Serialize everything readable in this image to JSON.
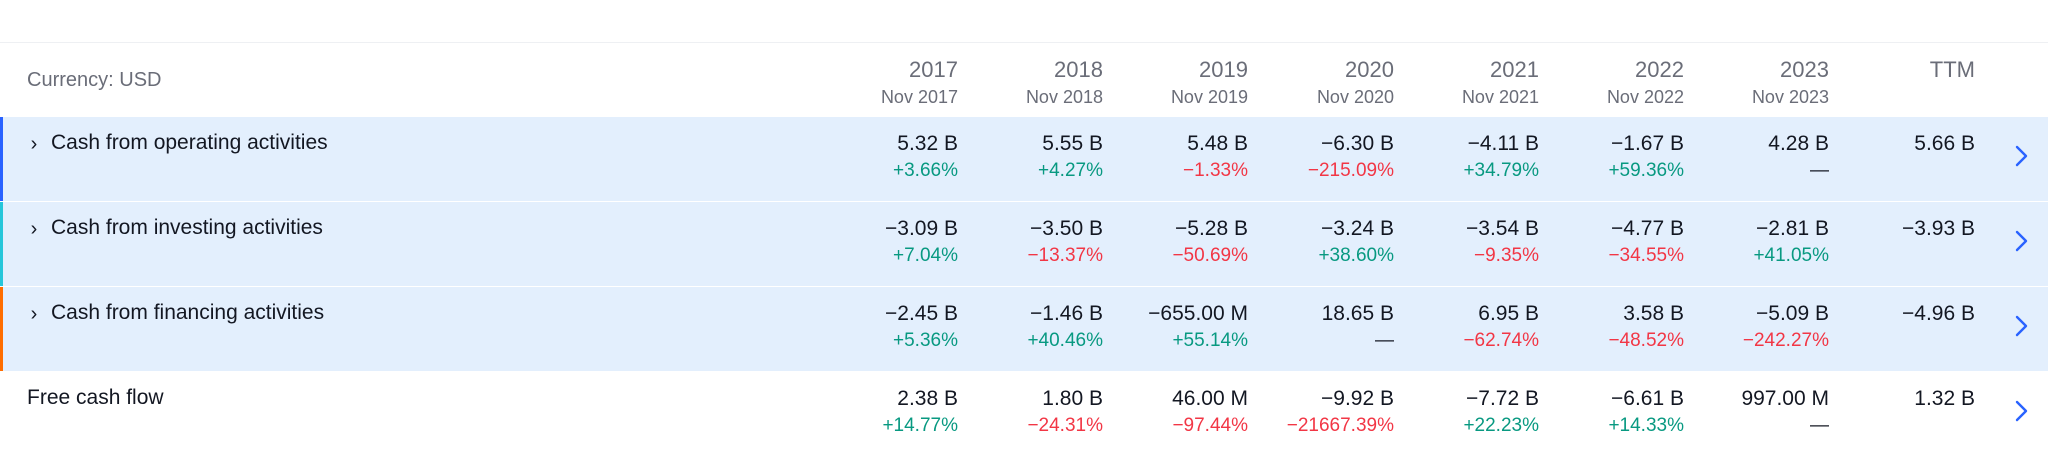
{
  "header": {
    "currency_label": "Currency: USD",
    "columns": [
      {
        "year": "2017",
        "period": "Nov 2017"
      },
      {
        "year": "2018",
        "period": "Nov 2018"
      },
      {
        "year": "2019",
        "period": "Nov 2019"
      },
      {
        "year": "2020",
        "period": "Nov 2020"
      },
      {
        "year": "2021",
        "period": "Nov 2021"
      },
      {
        "year": "2022",
        "period": "Nov 2022"
      },
      {
        "year": "2023",
        "period": "Nov 2023"
      },
      {
        "year": "TTM",
        "period": ""
      }
    ]
  },
  "colors": {
    "operating_accent": "#2962ff",
    "investing_accent": "#26c6da",
    "financing_accent": "#ff6d00",
    "positive": "#089981",
    "negative": "#f23645",
    "row_highlight": "#e3effd",
    "link_arrow": "#2962ff"
  },
  "icons": {
    "expander": "›",
    "row_link": "chevron-right-icon"
  },
  "rows": [
    {
      "label": "Cash from operating activities",
      "expandable": true,
      "values": [
        "5.32 B",
        "5.55 B",
        "5.48 B",
        "−6.30 B",
        "−4.11 B",
        "−1.67 B",
        "4.28 B",
        "5.66 B"
      ],
      "changes": [
        "+3.66%",
        "+4.27%",
        "−1.33%",
        "−215.09%",
        "+34.79%",
        "+59.36%",
        "—",
        ""
      ]
    },
    {
      "label": "Cash from investing activities",
      "expandable": true,
      "values": [
        "−3.09 B",
        "−3.50 B",
        "−5.28 B",
        "−3.24 B",
        "−3.54 B",
        "−4.77 B",
        "−2.81 B",
        "−3.93 B"
      ],
      "changes": [
        "+7.04%",
        "−13.37%",
        "−50.69%",
        "+38.60%",
        "−9.35%",
        "−34.55%",
        "+41.05%",
        ""
      ]
    },
    {
      "label": "Cash from financing activities",
      "expandable": true,
      "values": [
        "−2.45 B",
        "−1.46 B",
        "−655.00 M",
        "18.65 B",
        "6.95 B",
        "3.58 B",
        "−5.09 B",
        "−4.96 B"
      ],
      "changes": [
        "+5.36%",
        "+40.46%",
        "+55.14%",
        "—",
        "−62.74%",
        "−48.52%",
        "−242.27%",
        ""
      ]
    },
    {
      "label": "Free cash flow",
      "expandable": false,
      "values": [
        "2.38 B",
        "1.80 B",
        "46.00 M",
        "−9.92 B",
        "−7.72 B",
        "−6.61 B",
        "997.00 M",
        "1.32 B"
      ],
      "changes": [
        "+14.77%",
        "−24.31%",
        "−97.44%",
        "−21667.39%",
        "+22.23%",
        "+14.33%",
        "—",
        ""
      ]
    }
  ]
}
